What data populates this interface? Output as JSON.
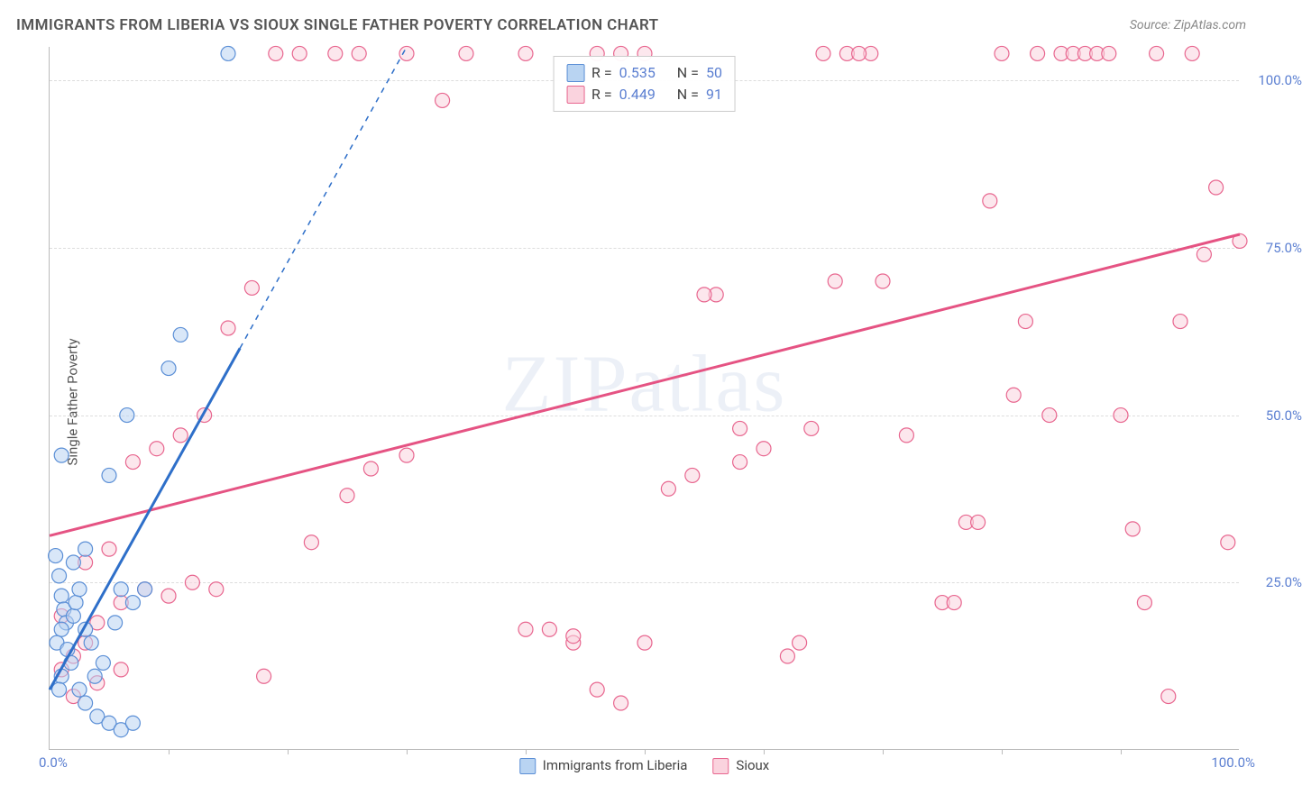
{
  "title": "IMMIGRANTS FROM LIBERIA VS SIOUX SINGLE FATHER POVERTY CORRELATION CHART",
  "source_label": "Source: ",
  "source_name": "ZipAtlas.com",
  "ylabel": "Single Father Poverty",
  "watermark": "ZIPatlas",
  "axes": {
    "xlim": [
      0,
      100
    ],
    "ylim": [
      0,
      105
    ],
    "yticks": [
      25,
      50,
      75,
      100
    ],
    "ytick_labels": [
      "25.0%",
      "50.0%",
      "75.0%",
      "100.0%"
    ],
    "xtick_left": "0.0%",
    "xtick_right": "100.0%",
    "xtick_marks": [
      10,
      20,
      30,
      40,
      50,
      60,
      70,
      80,
      90
    ],
    "grid_color": "#dddddd"
  },
  "series": [
    {
      "label": "Immigrants from Liberia",
      "fill": "#b9d4f2",
      "stroke": "#5b8fd6",
      "line_color": "#2e6fc9",
      "R": "0.535",
      "N": "50",
      "trend": {
        "x1": 0,
        "y1": 9,
        "x2": 16,
        "y2": 60
      },
      "trend_dash": {
        "x1": 16,
        "y1": 60,
        "x2": 30,
        "y2": 105
      },
      "points": [
        [
          0.5,
          29
        ],
        [
          0.8,
          26
        ],
        [
          1.0,
          23
        ],
        [
          1.2,
          21
        ],
        [
          1.4,
          19
        ],
        [
          1.0,
          18
        ],
        [
          0.6,
          16
        ],
        [
          1.5,
          15
        ],
        [
          2.0,
          20
        ],
        [
          2.2,
          22
        ],
        [
          2.5,
          24
        ],
        [
          3.0,
          18
        ],
        [
          3.5,
          16
        ],
        [
          1.8,
          13
        ],
        [
          1.0,
          11
        ],
        [
          0.8,
          9
        ],
        [
          2.5,
          9
        ],
        [
          3.0,
          7
        ],
        [
          4.0,
          5
        ],
        [
          5.0,
          4
        ],
        [
          6.0,
          3
        ],
        [
          7.0,
          4
        ],
        [
          3.8,
          11
        ],
        [
          4.5,
          13
        ],
        [
          5.5,
          19
        ],
        [
          6.0,
          24
        ],
        [
          7.0,
          22
        ],
        [
          8.0,
          24
        ],
        [
          2.0,
          28
        ],
        [
          3.0,
          30
        ],
        [
          1.0,
          44
        ],
        [
          5.0,
          41
        ],
        [
          6.5,
          50
        ],
        [
          10.0,
          57
        ],
        [
          11.0,
          62
        ],
        [
          15.0,
          104
        ]
      ]
    },
    {
      "label": "Sioux",
      "fill": "#fad3de",
      "stroke": "#e8668f",
      "line_color": "#e55383",
      "R": "0.449",
      "N": "91",
      "trend": {
        "x1": 0,
        "y1": 32,
        "x2": 100,
        "y2": 77
      },
      "points": [
        [
          1,
          12
        ],
        [
          2,
          14
        ],
        [
          3,
          16
        ],
        [
          4,
          19
        ],
        [
          6,
          22
        ],
        [
          8,
          24
        ],
        [
          10,
          23
        ],
        [
          12,
          25
        ],
        [
          14,
          24
        ],
        [
          2,
          8
        ],
        [
          4,
          10
        ],
        [
          6,
          12
        ],
        [
          1,
          20
        ],
        [
          3,
          28
        ],
        [
          5,
          30
        ],
        [
          7,
          43
        ],
        [
          9,
          45
        ],
        [
          11,
          47
        ],
        [
          13,
          50
        ],
        [
          15,
          63
        ],
        [
          17,
          69
        ],
        [
          19,
          104
        ],
        [
          21,
          104
        ],
        [
          24,
          104
        ],
        [
          26,
          104
        ],
        [
          30,
          104
        ],
        [
          33,
          97
        ],
        [
          35,
          104
        ],
        [
          40,
          104
        ],
        [
          42,
          18
        ],
        [
          44,
          16
        ],
        [
          46,
          104
        ],
        [
          48,
          104
        ],
        [
          50,
          104
        ],
        [
          52,
          39
        ],
        [
          54,
          41
        ],
        [
          56,
          68
        ],
        [
          58,
          43
        ],
        [
          60,
          45
        ],
        [
          62,
          14
        ],
        [
          27,
          42
        ],
        [
          30,
          44
        ],
        [
          18,
          11
        ],
        [
          22,
          31
        ],
        [
          25,
          38
        ],
        [
          40,
          18
        ],
        [
          44,
          17
        ],
        [
          46,
          9
        ],
        [
          48,
          7
        ],
        [
          50,
          16
        ],
        [
          55,
          68
        ],
        [
          58,
          48
        ],
        [
          63,
          16
        ],
        [
          65,
          104
        ],
        [
          67,
          104
        ],
        [
          69,
          104
        ],
        [
          70,
          70
        ],
        [
          72,
          47
        ],
        [
          75,
          22
        ],
        [
          77,
          34
        ],
        [
          79,
          82
        ],
        [
          81,
          53
        ],
        [
          83,
          104
        ],
        [
          85,
          104
        ],
        [
          86,
          104
        ],
        [
          87,
          104
        ],
        [
          88,
          104
        ],
        [
          89,
          104
        ],
        [
          90,
          50
        ],
        [
          91,
          33
        ],
        [
          92,
          22
        ],
        [
          93,
          104
        ],
        [
          95,
          64
        ],
        [
          97,
          74
        ],
        [
          98,
          84
        ],
        [
          99,
          31
        ],
        [
          100,
          76
        ],
        [
          96,
          104
        ],
        [
          94,
          8
        ],
        [
          82,
          64
        ],
        [
          84,
          50
        ],
        [
          80,
          104
        ],
        [
          78,
          34
        ],
        [
          76,
          22
        ],
        [
          68,
          104
        ],
        [
          66,
          70
        ],
        [
          64,
          48
        ]
      ]
    }
  ],
  "legend_r_label": "R =",
  "legend_n_label": "N ="
}
